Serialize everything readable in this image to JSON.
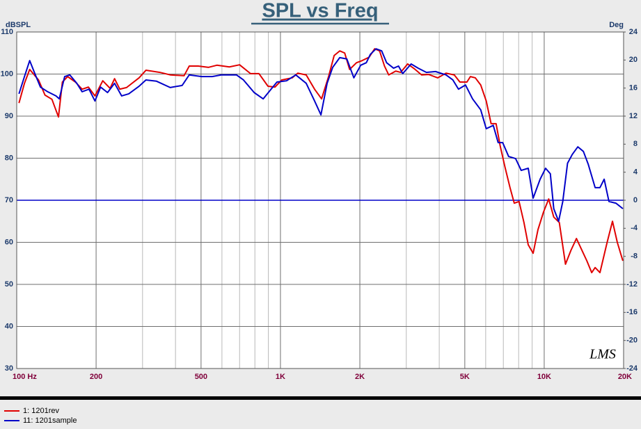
{
  "chart_data": {
    "type": "line",
    "title": "SPL vs Freq",
    "ylabel": "dBSPL",
    "y2label": "Deg",
    "annotation": "LMS",
    "xscale": "log",
    "grid": true,
    "xlim": [
      100,
      20000
    ],
    "xticks": [
      {
        "value": 100,
        "label": "100 Hz"
      },
      200,
      500,
      {
        "value": 1000,
        "label": "1K"
      },
      {
        "value": 2000,
        "label": "2K"
      },
      {
        "value": 5000,
        "label": "5K"
      },
      {
        "value": 10000,
        "label": "10K"
      },
      {
        "value": 20000,
        "label": "20K"
      }
    ],
    "xgrid_minor": [
      300,
      400,
      600,
      700,
      800,
      900,
      3000,
      4000,
      6000,
      7000,
      8000,
      9000
    ],
    "ylim": [
      30,
      110
    ],
    "yticks": [
      30,
      40,
      50,
      60,
      70,
      80,
      90,
      100,
      110
    ],
    "y2lim": [
      -24,
      24
    ],
    "y2ticks": [
      -24,
      -20,
      -16,
      -12,
      -8,
      -4,
      0,
      4,
      8,
      12,
      16,
      20,
      24
    ],
    "reference_line": {
      "axis": "y2",
      "value": 0,
      "color": "#0000c8"
    },
    "series": [
      {
        "name": "1: 1201rev",
        "color": "#e00000",
        "x": [
          102,
          107,
          112,
          121,
          128,
          136,
          144,
          149,
          156,
          167,
          177,
          187,
          198,
          212,
          226,
          235,
          246,
          261,
          291,
          309,
          349,
          382,
          431,
          451,
          488,
          534,
          574,
          640,
          700,
          770,
          829,
          897,
          953,
          1012,
          1108,
          1163,
          1252,
          1347,
          1432,
          1522,
          1598,
          1678,
          1752,
          1829,
          1943,
          2040,
          2168,
          2276,
          2376,
          2480,
          2573,
          2736,
          2856,
          3035,
          3226,
          3429,
          3645,
          3945,
          4243,
          4561,
          4790,
          5093,
          5250,
          5480,
          5745,
          6028,
          6290,
          6570,
          6810,
          7100,
          7420,
          7700,
          8030,
          8380,
          8700,
          9080,
          9470,
          9940,
          10400,
          10870,
          11410,
          12040,
          12630,
          13250,
          13830,
          14510,
          15140,
          15600,
          16270,
          17290,
          18150,
          18930,
          19870
        ],
        "values": [
          93.1,
          97.8,
          101.1,
          98.6,
          95,
          94,
          89.8,
          98.1,
          99.4,
          98.1,
          96.4,
          96.9,
          94.8,
          98.4,
          96.6,
          98.9,
          96.4,
          96.8,
          99.1,
          100.9,
          100.4,
          99.8,
          99.6,
          101.9,
          101.9,
          101.6,
          102.1,
          101.7,
          102.2,
          100.1,
          100.1,
          97.1,
          96.9,
          98.6,
          99.1,
          100.2,
          99.8,
          96.4,
          94.1,
          99.4,
          104.4,
          105.5,
          105,
          101.1,
          102.7,
          103.2,
          104,
          106,
          105.5,
          101.9,
          99.8,
          100.7,
          100.4,
          102.4,
          101.2,
          99.8,
          99.9,
          99.1,
          100.2,
          99.8,
          98.1,
          98.1,
          99.4,
          99.1,
          97.4,
          93.6,
          88.2,
          88.2,
          82.9,
          77.9,
          73,
          69.3,
          69.7,
          64.7,
          59.4,
          57.4,
          63,
          67.2,
          70.3,
          66,
          64.7,
          54.8,
          58.1,
          60.9,
          58.4,
          55.6,
          52.8,
          54,
          52.8,
          59.8,
          65,
          60,
          55.6
        ]
      },
      {
        "name": "11: 1201sample",
        "color": "#0000c8",
        "x": [
          102,
          107,
          112,
          117,
          123,
          131,
          141,
          145,
          152,
          159,
          169,
          177,
          188,
          198,
          208,
          221,
          235,
          250,
          266,
          291,
          309,
          339,
          382,
          424,
          451,
          503,
          551,
          596,
          681,
          724,
          795,
          860,
          913,
          970,
          1055,
          1143,
          1252,
          1347,
          1424,
          1503,
          1578,
          1678,
          1785,
          1898,
          2015,
          2116,
          2193,
          2304,
          2420,
          2526,
          2685,
          2803,
          2908,
          3129,
          3326,
          3576,
          3873,
          4243,
          4505,
          4732,
          5030,
          5350,
          5745,
          6028,
          6410,
          6690,
          6960,
          7330,
          7790,
          8180,
          8700,
          9080,
          9650,
          10120,
          10550,
          10870,
          11340,
          11760,
          12260,
          12780,
          13410,
          14080,
          14680,
          15600,
          16270,
          16880,
          17600,
          18710,
          19870
        ],
        "values": [
          95.3,
          99.4,
          103.2,
          100.2,
          96.9,
          95.8,
          94.8,
          94.1,
          99.4,
          99.8,
          97.8,
          95.8,
          96.4,
          93.6,
          96.9,
          95.6,
          97.8,
          94.8,
          95.3,
          97.1,
          98.6,
          98.3,
          96.8,
          97.3,
          99.8,
          99.4,
          99.4,
          99.8,
          99.8,
          98.6,
          95.6,
          94.1,
          96.1,
          98.1,
          98.4,
          99.8,
          97.8,
          93.6,
          90.3,
          97.8,
          101.6,
          103.9,
          103.6,
          99.1,
          102.1,
          102.7,
          104.7,
          106,
          105.5,
          102.7,
          101.4,
          101.9,
          100.1,
          102.4,
          101.4,
          100.4,
          100.6,
          99.8,
          98.6,
          96.4,
          97.4,
          94.1,
          91.5,
          87,
          87.8,
          83.7,
          83.7,
          80.4,
          79.9,
          77.1,
          77.6,
          70.5,
          75,
          77.6,
          76.3,
          68,
          65,
          69.7,
          78.8,
          80.9,
          82.7,
          81.6,
          78.6,
          73,
          73,
          75,
          69.7,
          69.3,
          68
        ]
      }
    ]
  }
}
